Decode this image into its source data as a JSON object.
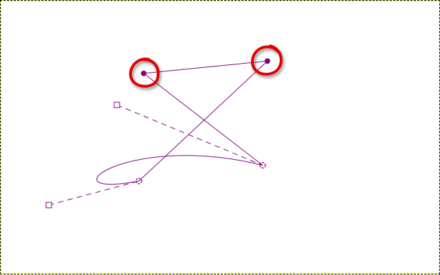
{
  "canvas": {
    "background": "#ffffff",
    "border_color": "#d6d600",
    "border_dash_color": "#000000"
  },
  "path": {
    "stroke_color": "#800080",
    "highlight_color": "#e00000"
  },
  "icons": {
    "anchor_point": "anchor-point-icon",
    "handle_square": "handle-square-icon",
    "highlight_ring": "red-circle-annotation-icon"
  }
}
